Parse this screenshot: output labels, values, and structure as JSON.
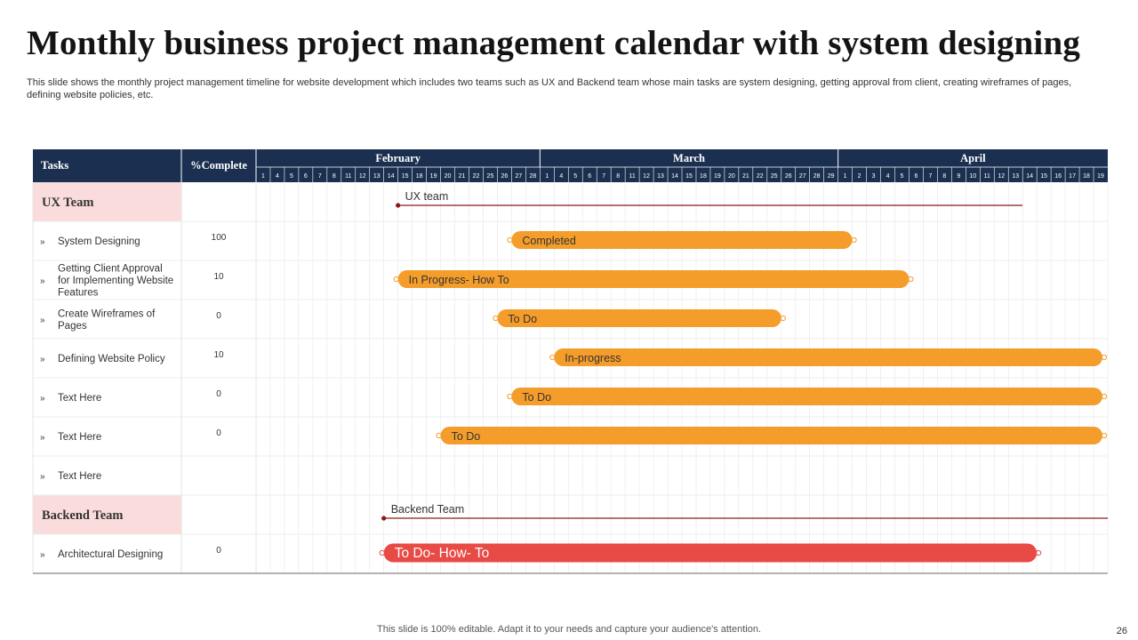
{
  "page": {
    "title": "Monthly business project management calendar with system designing",
    "subtitle": "This slide shows the monthly project management timeline for website development which includes two teams such as UX and Backend team whose main tasks are system designing, getting approval from client, creating wireframes of pages, defining website policies, etc.",
    "footer": "This slide is 100% editable. Adapt it to your needs and capture your audience's attention.",
    "page_number": "26"
  },
  "table": {
    "tasks_header": "Tasks",
    "complete_header": "%Complete",
    "bullet": "»",
    "months": [
      {
        "name": "February",
        "days": [
          "1",
          "4",
          "5",
          "6",
          "7",
          "8",
          "11",
          "12",
          "13",
          "14",
          "15",
          "18",
          "19",
          "20",
          "21",
          "22",
          "25",
          "26",
          "27",
          "28"
        ]
      },
      {
        "name": "March",
        "days": [
          "1",
          "4",
          "5",
          "6",
          "7",
          "8",
          "11",
          "12",
          "13",
          "14",
          "15",
          "18",
          "19",
          "20",
          "21",
          "22",
          "25",
          "26",
          "27",
          "28",
          "29"
        ]
      },
      {
        "name": "April",
        "days": [
          "1",
          "2",
          "3",
          "4",
          "5",
          "6",
          "7",
          "8",
          "9",
          "10",
          "11",
          "12",
          "13",
          "14",
          "15",
          "16",
          "17",
          "18",
          "19"
        ]
      }
    ],
    "rows": [
      {
        "kind": "group",
        "label": "UX Team",
        "pct": "",
        "bar": {
          "label": "UX team",
          "style": "line",
          "start_col": 10,
          "end_col": 54
        }
      },
      {
        "kind": "task",
        "label": "System Designing",
        "pct": "100",
        "bar": {
          "label": "Completed",
          "style": "orange",
          "start_col": 18,
          "end_col": 42
        }
      },
      {
        "kind": "task",
        "label": "Getting Client Approval for Implementing Website Features",
        "pct": "10",
        "bar": {
          "label": "In Progress- How To",
          "style": "orange",
          "start_col": 10,
          "end_col": 46
        }
      },
      {
        "kind": "task",
        "label": "Create Wireframes of Pages",
        "pct": "0",
        "bar": {
          "label": "To Do",
          "style": "orange",
          "start_col": 17,
          "end_col": 37
        }
      },
      {
        "kind": "task",
        "label": "Defining Website Policy",
        "pct": "10",
        "bar": {
          "label": "In-progress",
          "style": "orange",
          "start_col": 21,
          "end_col": 60
        }
      },
      {
        "kind": "task",
        "label": "Text Here",
        "pct": "0",
        "bar": {
          "label": "To Do",
          "style": "orange",
          "start_col": 18,
          "end_col": 60
        }
      },
      {
        "kind": "task",
        "label": "Text Here",
        "pct": "0",
        "bar": {
          "label": "To Do",
          "style": "orange",
          "start_col": 13,
          "end_col": 60
        }
      },
      {
        "kind": "task",
        "label": "Text Here",
        "pct": "",
        "bar": null
      },
      {
        "kind": "group",
        "label": "Backend Team",
        "pct": "",
        "bar": {
          "label": "Backend Team",
          "style": "line",
          "start_col": 9,
          "end_col": 60
        }
      },
      {
        "kind": "task",
        "label": "Architectural Designing",
        "pct": "0",
        "bar": {
          "label": "To Do- How- To",
          "style": "red",
          "start_col": 9,
          "end_col": 55
        }
      }
    ]
  },
  "colors": {
    "header_bg": "#1b3050",
    "group_bg": "#fbdcdc",
    "orange_bar": "#f59d2a",
    "red_bar": "#e84a45",
    "line": "#8b1a1a",
    "grid": "#e7e7e7"
  }
}
